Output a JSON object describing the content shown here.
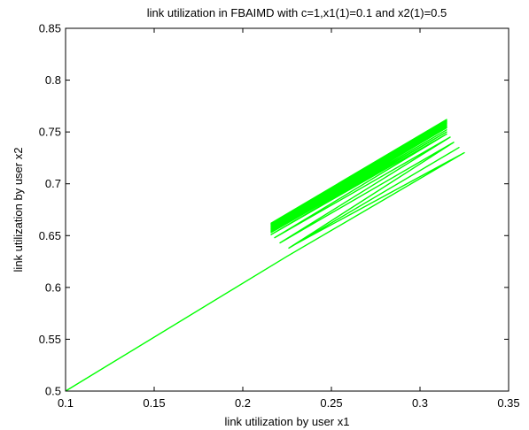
{
  "chart_data": {
    "type": "line",
    "title": "link utilization in FBAIMD with c=1,x1(1)=0.1 and x2(1)=0.5",
    "xlabel": "link utilization by user x1",
    "ylabel": "link utilization by user x2",
    "xlim": [
      0.1,
      0.35
    ],
    "ylim": [
      0.5,
      0.85
    ],
    "xticks": [
      0.1,
      0.15,
      0.2,
      0.25,
      0.3,
      0.35
    ],
    "yticks": [
      0.5,
      0.55,
      0.6,
      0.65,
      0.7,
      0.75,
      0.8,
      0.85
    ],
    "xtick_labels": [
      "0.1",
      "0.15",
      "0.2",
      "0.25",
      "0.3",
      "0.35"
    ],
    "ytick_labels": [
      "0.5",
      "0.55",
      "0.6",
      "0.65",
      "0.7",
      "0.75",
      "0.8",
      "0.85"
    ],
    "grid": false,
    "series": [
      {
        "color": "#00ff00",
        "x": [
          0.1,
          0.225,
          0.325,
          0.23,
          0.322,
          0.226,
          0.319,
          0.221,
          0.317,
          0.218,
          0.315,
          0.216,
          0.315,
          0.216,
          0.315,
          0.216,
          0.315,
          0.216,
          0.315,
          0.216,
          0.315,
          0.216,
          0.315,
          0.216,
          0.315,
          0.216,
          0.315,
          0.216,
          0.315,
          0.216,
          0.315,
          0.216,
          0.315,
          0.216,
          0.315,
          0.216,
          0.315,
          0.216,
          0.315
        ],
        "y": [
          0.5,
          0.63,
          0.73,
          0.642,
          0.735,
          0.638,
          0.74,
          0.643,
          0.745,
          0.648,
          0.748,
          0.651,
          0.75,
          0.653,
          0.752,
          0.654,
          0.754,
          0.655,
          0.755,
          0.656,
          0.756,
          0.657,
          0.757,
          0.658,
          0.758,
          0.659,
          0.759,
          0.66,
          0.76,
          0.66,
          0.76,
          0.661,
          0.761,
          0.661,
          0.761,
          0.662,
          0.762,
          0.662,
          0.762
        ]
      }
    ]
  }
}
